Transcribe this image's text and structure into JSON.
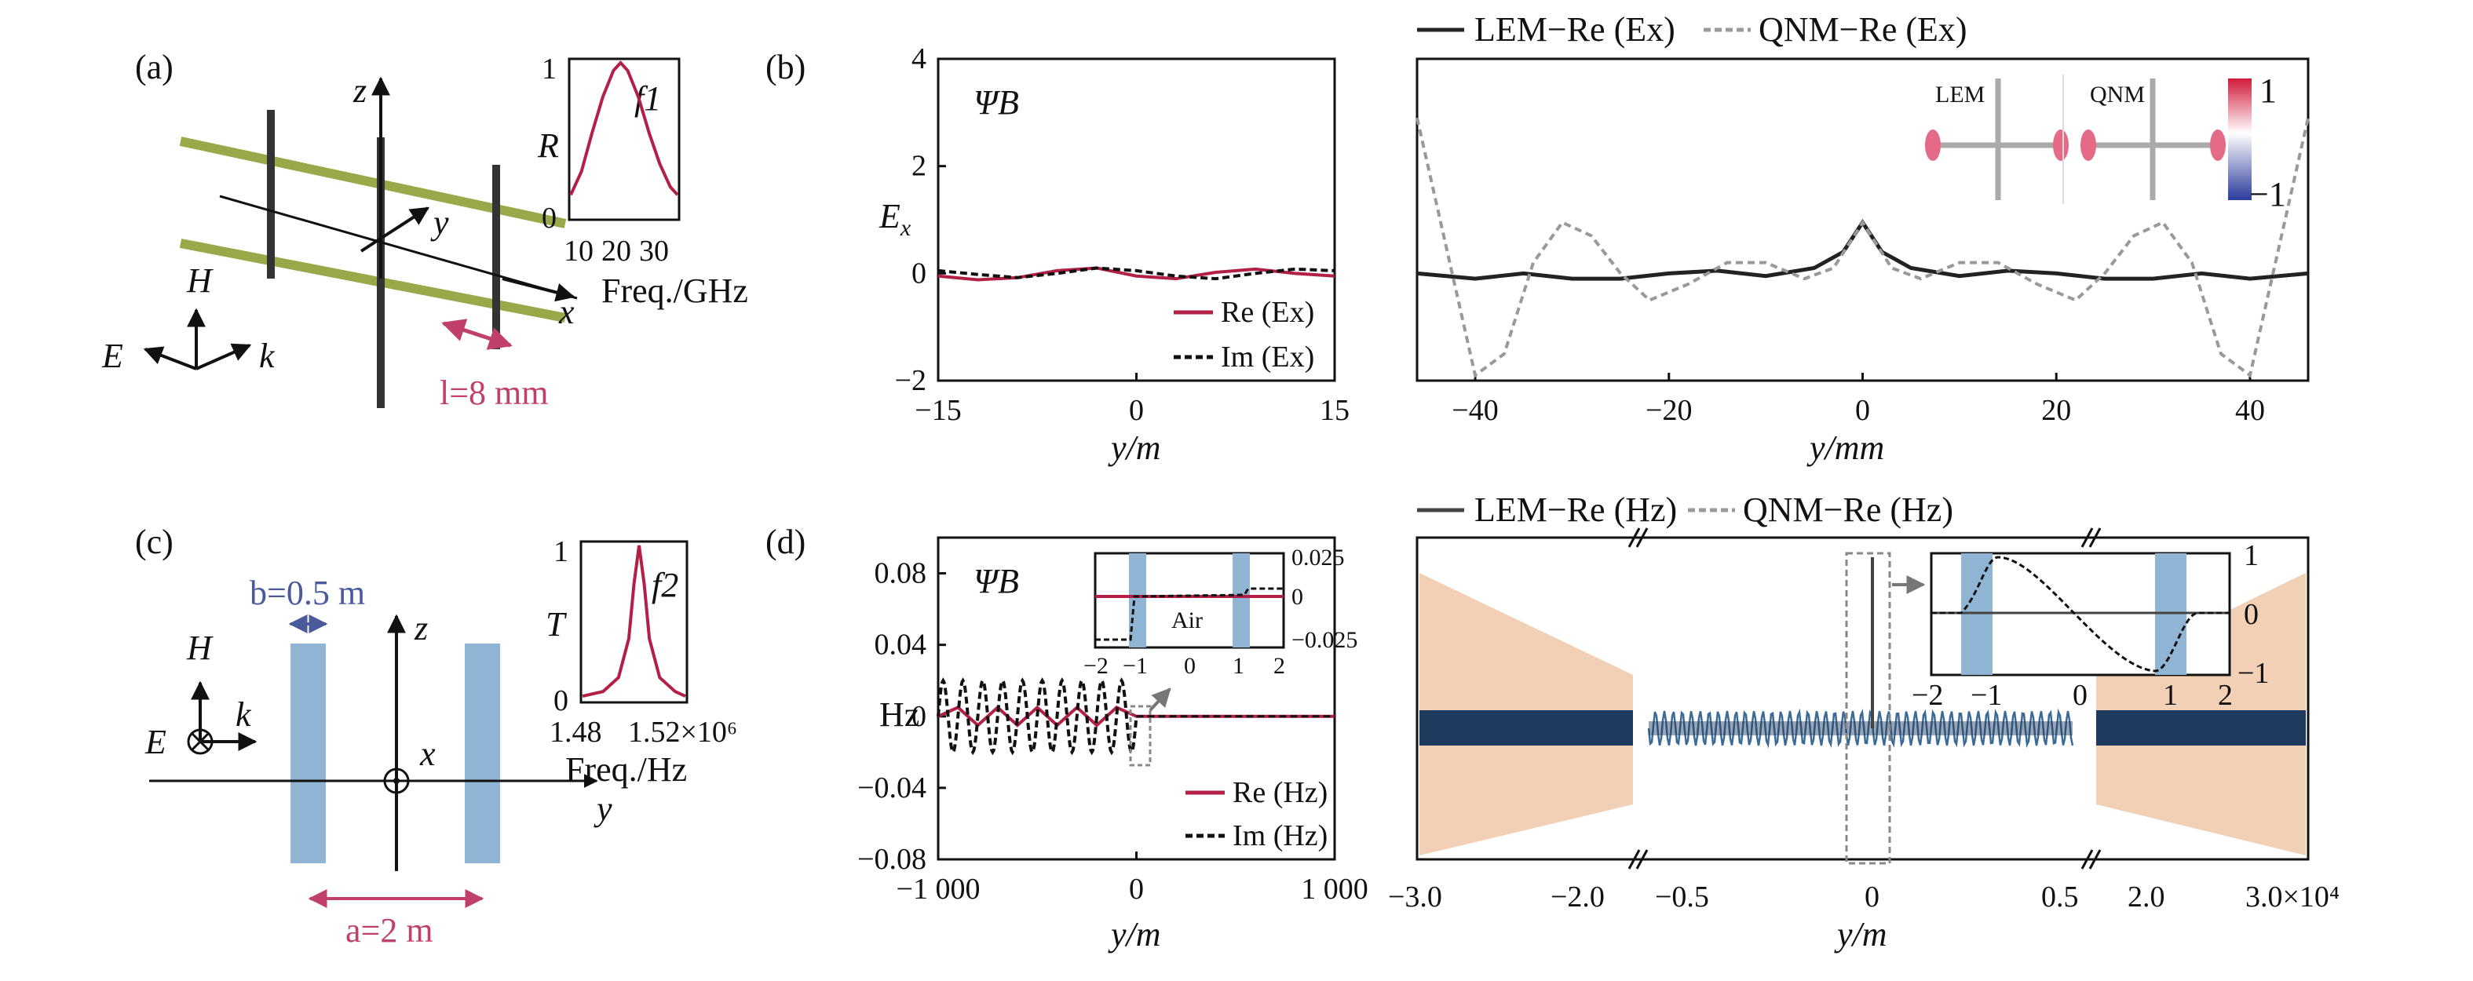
{
  "panels": {
    "a": {
      "label": "(a)",
      "axes": {
        "z": "z",
        "y": "y",
        "x": "x"
      },
      "vectors": {
        "H": "H",
        "E": "E",
        "k": "k"
      },
      "length_label": "l=8 mm",
      "inset": {
        "ylabel": "R",
        "xlabel": "Freq./GHz",
        "name": "f1",
        "yticks": [
          "0",
          "1"
        ],
        "xticks": [
          "10",
          "20",
          "30"
        ]
      }
    },
    "b": {
      "label": "(b)",
      "psi": "ΨB",
      "legend": [
        "LEM−Re (Ex)",
        "QNM−Re (Ex)"
      ],
      "inset_labels": [
        "LEM",
        "QNM"
      ],
      "colorbar_ticks": [
        "1",
        "−1"
      ],
      "left_legend": [
        "Re (Ex)",
        "Im (Ex)"
      ]
    },
    "c": {
      "label": "(c)",
      "b_label": "b=0.5 m",
      "a_label": "a=2 m",
      "vectors": {
        "H": "H",
        "E": "E",
        "k": "k"
      },
      "axes": {
        "z": "z",
        "x": "x",
        "y": "y"
      },
      "inset": {
        "ylabel": "T",
        "xlabel": "Freq./Hz",
        "name": "f2",
        "yticks": [
          "0",
          "1"
        ],
        "xticks": [
          "1.48",
          "1.52×10⁶"
        ]
      }
    },
    "d": {
      "label": "(d)",
      "psi": "ΨB",
      "legend": [
        "LEM−Re (Hz)",
        "QNM−Re (Hz)"
      ],
      "left_legend": [
        "Re (Hz)",
        "Im (Hz)"
      ],
      "inset_air": "Air",
      "inset_yticks": [
        "0.025",
        "0",
        "−0.025"
      ],
      "inset_xticks": [
        "−2",
        "−1",
        "0",
        "1",
        "2"
      ]
    }
  },
  "chart_data": [
    {
      "type": "line",
      "panel": "a-inset",
      "xlabel": "Freq./GHz",
      "ylabel": "R",
      "xlim": [
        5,
        35
      ],
      "ylim": [
        0,
        1
      ],
      "series": [
        {
          "values": [
            [
              5,
              0.15
            ],
            [
              8,
              0.3
            ],
            [
              11,
              0.55
            ],
            [
              14,
              0.78
            ],
            [
              17,
              0.95
            ],
            [
              19,
              1.0
            ],
            [
              21,
              0.95
            ],
            [
              24,
              0.78
            ],
            [
              27,
              0.55
            ],
            [
              30,
              0.35
            ],
            [
              33,
              0.2
            ],
            [
              35,
              0.15
            ]
          ]
        }
      ],
      "colors": [
        "#b22046"
      ]
    },
    {
      "type": "line",
      "panel": "b-left",
      "xlabel": "y/m",
      "ylabel": "Ex",
      "xlim": [
        -15,
        15
      ],
      "ylim": [
        -2,
        4
      ],
      "xticks": [
        "−15",
        "0",
        "15"
      ],
      "yticks": [
        "−2",
        "0",
        "2",
        "4"
      ],
      "series": [
        {
          "name": "Re (Ex)",
          "values": [
            [
              -15,
              -0.05
            ],
            [
              -12,
              -0.12
            ],
            [
              -9,
              -0.08
            ],
            [
              -6,
              0.05
            ],
            [
              -3,
              0.1
            ],
            [
              0,
              -0.05
            ],
            [
              3,
              -0.1
            ],
            [
              6,
              0.02
            ],
            [
              9,
              0.08
            ],
            [
              12,
              0.0
            ],
            [
              15,
              -0.05
            ]
          ]
        },
        {
          "name": "Im (Ex)",
          "values": [
            [
              -15,
              0.05
            ],
            [
              -12,
              -0.02
            ],
            [
              -9,
              -0.08
            ],
            [
              -6,
              0.0
            ],
            [
              -3,
              0.1
            ],
            [
              0,
              0.05
            ],
            [
              3,
              -0.05
            ],
            [
              6,
              -0.1
            ],
            [
              9,
              0.0
            ],
            [
              12,
              0.08
            ],
            [
              15,
              0.05
            ]
          ]
        }
      ],
      "colors": [
        "#b22046",
        "#111111"
      ]
    },
    {
      "type": "line",
      "panel": "b-right",
      "xlabel": "y/mm",
      "ylabel": "",
      "xlim": [
        -46,
        46
      ],
      "ylim": [
        -2,
        4
      ],
      "xticks": [
        "−40",
        "−20",
        "0",
        "20",
        "40"
      ],
      "series": [
        {
          "name": "LEM−Re (Ex)",
          "values": [
            [
              -46,
              0.0
            ],
            [
              -40,
              -0.1
            ],
            [
              -35,
              0.0
            ],
            [
              -30,
              -0.1
            ],
            [
              -25,
              -0.1
            ],
            [
              -20,
              0.0
            ],
            [
              -15,
              0.05
            ],
            [
              -10,
              -0.05
            ],
            [
              -5,
              0.1
            ],
            [
              -2,
              0.4
            ],
            [
              0,
              0.95
            ],
            [
              2,
              0.4
            ],
            [
              5,
              0.1
            ],
            [
              10,
              -0.05
            ],
            [
              15,
              0.05
            ],
            [
              20,
              0.0
            ],
            [
              25,
              -0.1
            ],
            [
              30,
              -0.1
            ],
            [
              35,
              0.0
            ],
            [
              40,
              -0.1
            ],
            [
              46,
              0.0
            ]
          ]
        },
        {
          "name": "QNM−Re (Ex)",
          "values": [
            [
              -46,
              2.9
            ],
            [
              -43,
              0.5
            ],
            [
              -40,
              -1.9
            ],
            [
              -37,
              -1.5
            ],
            [
              -34,
              0.2
            ],
            [
              -31,
              0.95
            ],
            [
              -28,
              0.7
            ],
            [
              -25,
              0.0
            ],
            [
              -22,
              -0.5
            ],
            [
              -18,
              -0.2
            ],
            [
              -14,
              0.2
            ],
            [
              -10,
              0.2
            ],
            [
              -6,
              -0.1
            ],
            [
              -3,
              0.1
            ],
            [
              0,
              0.95
            ],
            [
              3,
              0.1
            ],
            [
              6,
              -0.1
            ],
            [
              10,
              0.2
            ],
            [
              14,
              0.2
            ],
            [
              18,
              -0.2
            ],
            [
              22,
              -0.5
            ],
            [
              25,
              0.0
            ],
            [
              28,
              0.7
            ],
            [
              31,
              0.95
            ],
            [
              34,
              0.2
            ],
            [
              37,
              -1.5
            ],
            [
              40,
              -1.9
            ],
            [
              43,
              0.5
            ],
            [
              46,
              2.9
            ]
          ]
        }
      ],
      "colors": [
        "#222222",
        "#999999"
      ]
    },
    {
      "type": "line",
      "panel": "c-inset",
      "xlabel": "Freq./Hz",
      "ylabel": "T",
      "xlim": [
        1.48,
        1.52
      ],
      "ylim": [
        0,
        1
      ],
      "series": [
        {
          "values": [
            [
              1.48,
              0.03
            ],
            [
              1.488,
              0.06
            ],
            [
              1.494,
              0.15
            ],
            [
              1.498,
              0.4
            ],
            [
              1.5,
              0.75
            ],
            [
              1.502,
              1.0
            ],
            [
              1.504,
              0.75
            ],
            [
              1.506,
              0.4
            ],
            [
              1.51,
              0.15
            ],
            [
              1.516,
              0.06
            ],
            [
              1.52,
              0.03
            ]
          ]
        }
      ],
      "colors": [
        "#b22046"
      ]
    },
    {
      "type": "line",
      "panel": "d-left",
      "xlabel": "y/m",
      "ylabel": "Hz",
      "xlim": [
        -1000,
        1000
      ],
      "ylim": [
        -0.08,
        0.1
      ],
      "xticks": [
        "−1 000",
        "0",
        "1 000"
      ],
      "yticks": [
        "−0.08",
        "−0.04",
        "0",
        "0.04",
        "0.08"
      ],
      "series": [
        {
          "name": "Re (Hz)",
          "values": [
            [
              -1000,
              0.0
            ],
            [
              -900,
              0.005
            ],
            [
              -800,
              -0.005
            ],
            [
              -700,
              0.005
            ],
            [
              -600,
              -0.005
            ],
            [
              -500,
              0.005
            ],
            [
              -400,
              -0.005
            ],
            [
              -300,
              0.005
            ],
            [
              -200,
              -0.005
            ],
            [
              -100,
              0.005
            ],
            [
              0,
              0.0
            ],
            [
              1000,
              0.0
            ]
          ]
        },
        {
          "name": "Im (Hz)",
          "amplitude": 0.02,
          "period": 100,
          "range": [
            -1000,
            0
          ]
        }
      ],
      "colors": [
        "#b22046",
        "#111111"
      ]
    },
    {
      "type": "line",
      "panel": "d-right",
      "xlabel": "y/m",
      "ylabel": "",
      "xticks": [
        "−3.0",
        "−2.0",
        "−0.5",
        "0",
        "0.5",
        "2.0",
        "3.0×10⁴"
      ],
      "series": [
        {
          "name": "LEM−Re (Hz)"
        },
        {
          "name": "QNM−Re (Hz)"
        }
      ],
      "colors": [
        "#1f3a5f",
        "#f0c8a8"
      ]
    }
  ]
}
